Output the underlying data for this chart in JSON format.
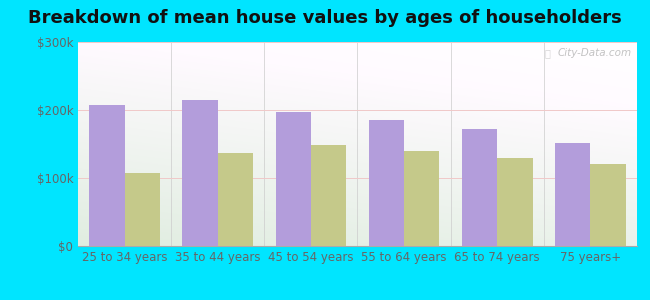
{
  "title": "Breakdown of mean house values by ages of householders",
  "categories": [
    "25 to 34 years",
    "35 to 44 years",
    "45 to 54 years",
    "55 to 64 years",
    "65 to 74 years",
    "75 years+"
  ],
  "ranson_values": [
    207000,
    215000,
    197000,
    185000,
    172000,
    152000
  ],
  "wv_values": [
    108000,
    137000,
    148000,
    140000,
    130000,
    120000
  ],
  "ranson_color": "#b39ddb",
  "wv_color": "#c5c98a",
  "ylim": [
    0,
    300000
  ],
  "yticks": [
    0,
    100000,
    200000,
    300000
  ],
  "ytick_labels": [
    "$0",
    "$100k",
    "$200k",
    "$300k"
  ],
  "bg_outer": "#00e5ff",
  "watermark": "City-Data.com",
  "bar_width": 0.38,
  "title_fontsize": 13,
  "tick_fontsize": 8.5,
  "legend_fontsize": 9.5
}
